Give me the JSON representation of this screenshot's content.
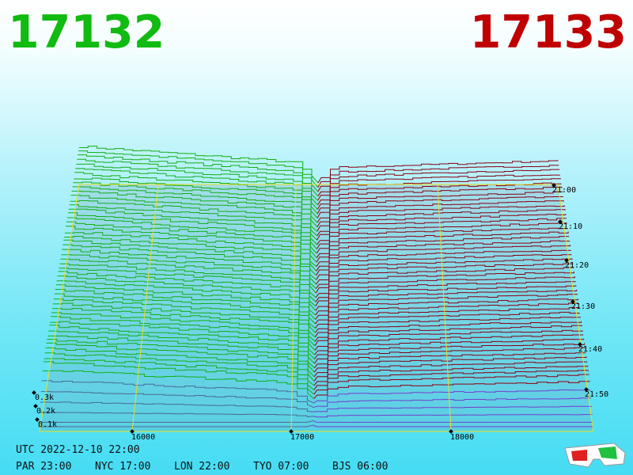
{
  "bid_price": "17132",
  "ask_price": "17133",
  "price_axis": [
    "16000",
    "17000",
    "18000"
  ],
  "depth_axis": [
    "0.1k",
    "0.2k",
    "0.3k"
  ],
  "time_axis": [
    "21:00",
    "21:10",
    "21:20",
    "21:30",
    "21:40",
    "21:50"
  ],
  "clock": {
    "utc": "UTC 2022-12-10 22:00",
    "cities": [
      "PAR 23:00",
      "NYC 17:00",
      "LON 22:00",
      "TYO 07:00",
      "BJS 06:00"
    ]
  }
}
